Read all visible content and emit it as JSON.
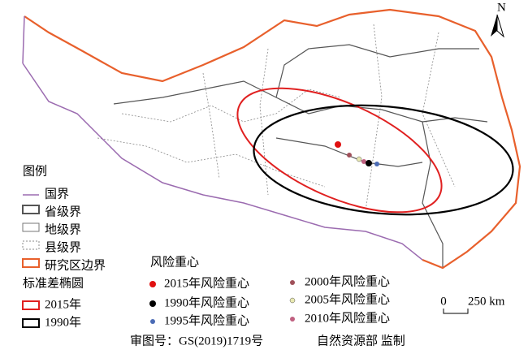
{
  "map": {
    "north_label": "N",
    "legend": {
      "title": "图例",
      "boundaries": [
        "国界",
        "省级界",
        "地级界",
        "县级界",
        "研究区边界"
      ],
      "ellipse_title": "标准差椭圆",
      "ellipses": [
        "2015年",
        "1990年"
      ],
      "centroid_title": "风险重心",
      "centroids": [
        "2015年风险重心",
        "1990年风险重心",
        "1995年风险重心",
        "2000年风险重心",
        "2005年风险重心",
        "2010年风险重心"
      ]
    },
    "scale_bar": {
      "start": "0",
      "end": "250 km"
    },
    "footer": {
      "approval": "审图号：GS(2019)1719号",
      "supervisor": "自然资源部 监制"
    }
  }
}
